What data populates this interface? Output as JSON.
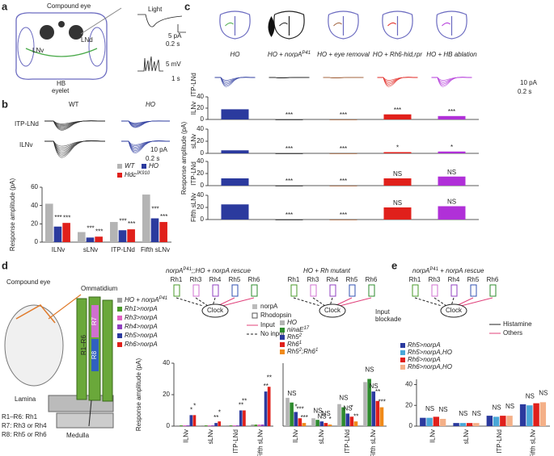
{
  "figure": {
    "a": {
      "label": "a",
      "compound_eye": "Compound eye",
      "lnd": "LNd",
      "lnv": "LNv",
      "hb": "HB",
      "eyelet": "eyelet",
      "light": "Light",
      "s1": "5 pA",
      "s2": "0.2 s",
      "s3": "5 mV",
      "s4": "1 s"
    },
    "b": {
      "label": "b",
      "wt": "WT",
      "ho": "HO",
      "row1": "ITP-LNd",
      "row2": "ILNv",
      "s1": "10 pA",
      "s2": "0.2 s"
    },
    "c": {
      "label": "c",
      "row": "ITP-LNd",
      "s1": "10 pA",
      "s2": "0.2 s"
    },
    "d": {
      "label": "d",
      "compound_eye": "Compound eye",
      "ommatidium": "Ommatidium",
      "lamina": "Lamina",
      "medulla": "Medulla",
      "r16": "R1–R6",
      "r7": "R7",
      "r8": "R8",
      "key1": "R1–R6: Rh1",
      "key2": "R7: Rh3 or Rh4",
      "key3": "R8: Rh5 or Rh6",
      "rescue_title": "norpA",
      "rescue_sup": "P41",
      "rescue_rest": ";;HO + norpA rescue",
      "rh": [
        "Rh1",
        "Rh3",
        "Rh4",
        "Rh5",
        "Rh6"
      ],
      "clock": "Clock",
      "norpa": "norpA",
      "rhodopsin": "Rhodopsin",
      "input": "Input",
      "no_input": "No input",
      "mutant_title": "HO + Rh mutant",
      "rh2": [
        "Rh1",
        "Rh3",
        "Rh4",
        "Rh5",
        "Rh6"
      ],
      "clock2": "Clock",
      "blockade1": "Input",
      "blockade2": "blockade"
    },
    "e": {
      "label": "e",
      "title": "norpA",
      "title_sup": "P41",
      "title_rest": " + norpA rescue",
      "rh": [
        "Rh1",
        "Rh3",
        "Rh4",
        "Rh5",
        "Rh6"
      ],
      "clock": "Clock",
      "histamine": "Histamine",
      "others": "Others"
    }
  },
  "chart_data": [
    {
      "type": "bar",
      "ylabel": "Response amplitude (pA)",
      "categories": [
        "ILNv",
        "sLNv",
        "ITP-LNd",
        "Fifth sLNv"
      ],
      "ylim": [
        0,
        60
      ],
      "yticks": [
        0,
        20,
        40,
        60
      ],
      "series": [
        {
          "name": "WT",
          "color": "#b4b4b4",
          "values": [
            42,
            11,
            22,
            52
          ]
        },
        {
          "name": "HO",
          "color": "#2b3a9e",
          "values": [
            17,
            5,
            13,
            26
          ],
          "stars": [
            "***",
            "***",
            "***",
            "***"
          ]
        },
        {
          "name": "Hdc",
          "name_parts": [
            "JK910"
          ],
          "color": "#e0201b",
          "values": [
            21,
            6,
            14,
            22
          ],
          "stars": [
            "***",
            "***",
            "***",
            "***"
          ]
        }
      ]
    },
    {
      "type": "bar_rows",
      "ylabel": "Response amplitude (pA)",
      "categories": [
        "HO",
        "HO + norpA",
        "HO + eye removal",
        "HO + Rh6-hid,rpr",
        "HO + HB ablation"
      ],
      "category_sups": [
        null,
        "P41",
        null,
        null,
        null
      ],
      "colors": [
        "#2b3a9e",
        "#222222",
        "#a0603a",
        "#e0201b",
        "#b030d8"
      ],
      "ylim": [
        0,
        40
      ],
      "yticks": [
        0,
        20,
        40
      ],
      "rows": [
        {
          "label": "ILNv",
          "values": [
            18,
            0,
            0,
            9,
            6
          ],
          "stars": [
            null,
            "***",
            "***",
            "***",
            "***"
          ]
        },
        {
          "label": "sLNv",
          "values": [
            5,
            0,
            0,
            2,
            3
          ],
          "stars": [
            null,
            "***",
            "***",
            "*",
            "*"
          ]
        },
        {
          "label": "ITP-LNd",
          "values": [
            12,
            0,
            0,
            12,
            15
          ],
          "stars": [
            null,
            "***",
            "***",
            "NS",
            "NS"
          ]
        },
        {
          "label": "Fifth sLNv",
          "values": [
            25,
            0,
            0,
            20,
            22
          ],
          "stars": [
            null,
            "***",
            "***",
            "NS",
            "NS"
          ]
        }
      ]
    },
    {
      "type": "bar",
      "ylabel": "Response amplitude (pA)",
      "categories": [
        "ILNv",
        "sLNv",
        "ITP-LNd",
        "Fifth sLNv"
      ],
      "ylim": [
        0,
        40
      ],
      "yticks": [
        0,
        20,
        40
      ],
      "series": [
        {
          "name": "HO + norpA",
          "name_parts": [
            "P41"
          ],
          "color": "#a0a0a0",
          "values": [
            0.5,
            0.5,
            0.5,
            1
          ]
        },
        {
          "name": "Rh1>norpA",
          "color": "#4a9a2a",
          "values": [
            0.5,
            0.5,
            0.5,
            1
          ]
        },
        {
          "name": "Rh3>norpA",
          "color": "#e060c0",
          "values": [
            0.5,
            0.5,
            0.5,
            1
          ]
        },
        {
          "name": "Rh4>norpA",
          "color": "#9040c0",
          "values": [
            0.5,
            0.5,
            0.5,
            1
          ]
        },
        {
          "name": "Rh5>norpA",
          "color": "#2b3a9e",
          "values": [
            7,
            2,
            10,
            22
          ],
          "stars": [
            "*",
            "**",
            "**",
            "**"
          ]
        },
        {
          "name": "Rh6>norpA",
          "color": "#e0201b",
          "values": [
            7,
            3,
            10,
            25
          ],
          "stars": [
            "*",
            "*",
            "**",
            "**"
          ]
        }
      ]
    },
    {
      "type": "bar",
      "categories": [
        "ILNv",
        "sLNv",
        "ITP-LNd",
        "Fifth sLNv"
      ],
      "ylim": [
        0,
        40
      ],
      "series": [
        {
          "name": "HO",
          "color": "#b4b4b4",
          "values": [
            18,
            5,
            14,
            28
          ]
        },
        {
          "name": "ninaE",
          "name_parts": [
            "17"
          ],
          "color": "#2e8b2e",
          "values": [
            15,
            4,
            12,
            30
          ],
          "stars": [
            "NS",
            "NS",
            "NS",
            "NS"
          ]
        },
        {
          "name": "Rh5",
          "name_parts": [
            "2"
          ],
          "color": "#2b3a9e",
          "values": [
            9,
            3,
            8,
            22
          ],
          "stars": [
            "*",
            "NS",
            "NS",
            "NS"
          ]
        },
        {
          "name": "Rh6",
          "name_parts": [
            "1"
          ],
          "color": "#e0201b",
          "values": [
            5,
            2,
            6,
            16
          ],
          "stars": [
            "***",
            "NS",
            "*",
            "**"
          ]
        },
        {
          "name": "Rh5",
          "name_parts": [
            "2",
            ";Rh6",
            "1"
          ],
          "color": "#f08a1a",
          "values": [
            2,
            1,
            3,
            12
          ],
          "stars": [
            "***",
            "*",
            "**",
            "***"
          ]
        }
      ]
    },
    {
      "type": "bar",
      "categories": [
        "ILNv",
        "sLNv",
        "ITP-LNd",
        "Fifth sLNv"
      ],
      "ylim": [
        0,
        45
      ],
      "yticks": [
        0,
        20,
        40
      ],
      "series": [
        {
          "name": "Rh5>norpA",
          "color": "#2b3a9e",
          "values": [
            8,
            3,
            10,
            21
          ]
        },
        {
          "name": "Rh5>norpA,HO",
          "color": "#4aa8d8",
          "values": [
            8,
            3,
            9,
            20
          ],
          "stars": [
            "NS",
            "NS",
            "NS",
            "NS"
          ]
        },
        {
          "name": "Rh6>norpA",
          "color": "#e0201b",
          "values": [
            9,
            3,
            10,
            22
          ]
        },
        {
          "name": "Rh6>norpA,HO",
          "color": "#f4b088",
          "values": [
            7,
            3,
            10,
            23
          ],
          "stars": [
            "NS",
            "NS",
            "NS",
            "NS"
          ]
        }
      ]
    }
  ]
}
